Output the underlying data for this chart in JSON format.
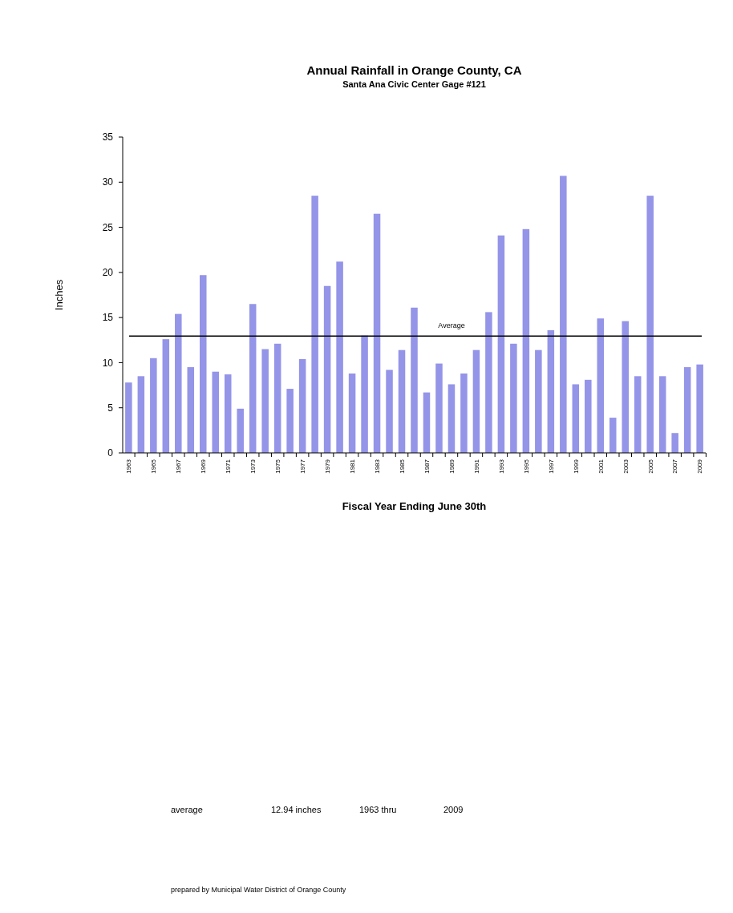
{
  "chart_data": {
    "type": "bar",
    "title": "Annual Rainfall in Orange County, CA",
    "subtitle": "Santa Ana Civic Center Gage #121",
    "xlabel": "Fiscal Year Ending June 30th",
    "ylabel": "Inches",
    "categories": [
      "1963",
      null,
      "1965",
      null,
      "1967",
      null,
      "1969",
      null,
      "1971",
      null,
      "1973",
      null,
      "1975",
      null,
      "1977",
      null,
      "1979",
      null,
      "1981",
      null,
      "1983",
      null,
      "1985",
      null,
      "1987",
      null,
      "1989",
      null,
      "1991",
      null,
      "1993",
      null,
      "1995",
      null,
      "1997",
      null,
      "1999",
      null,
      "2001",
      null,
      "2003",
      null,
      "2005",
      null,
      "2007",
      null,
      "2009"
    ],
    "values": [
      7.8,
      8.5,
      10.5,
      12.6,
      15.4,
      9.5,
      19.7,
      9.0,
      8.7,
      4.9,
      16.5,
      11.5,
      12.1,
      7.1,
      10.4,
      28.5,
      18.5,
      21.2,
      8.8,
      13.0,
      26.5,
      9.2,
      11.4,
      16.1,
      6.7,
      9.9,
      7.6,
      8.8,
      11.4,
      15.6,
      24.1,
      12.1,
      24.8,
      11.4,
      13.6,
      30.7,
      7.6,
      8.1,
      14.9,
      3.9,
      14.6,
      8.5,
      28.5,
      8.5,
      2.2,
      9.5,
      9.8
    ],
    "color": "#9494e8",
    "ylim": [
      0,
      35
    ],
    "yticks": [
      0,
      5,
      10,
      15,
      20,
      25,
      30,
      35
    ],
    "grid": false,
    "ref_lines": [
      {
        "axis": "y",
        "value": 12.94,
        "label": "Average",
        "color": "#000000"
      }
    ],
    "annotations": [
      "average",
      "12.94 inches",
      "1963 thru",
      "2009",
      "prepared by Municipal Water District of Orange County"
    ]
  }
}
